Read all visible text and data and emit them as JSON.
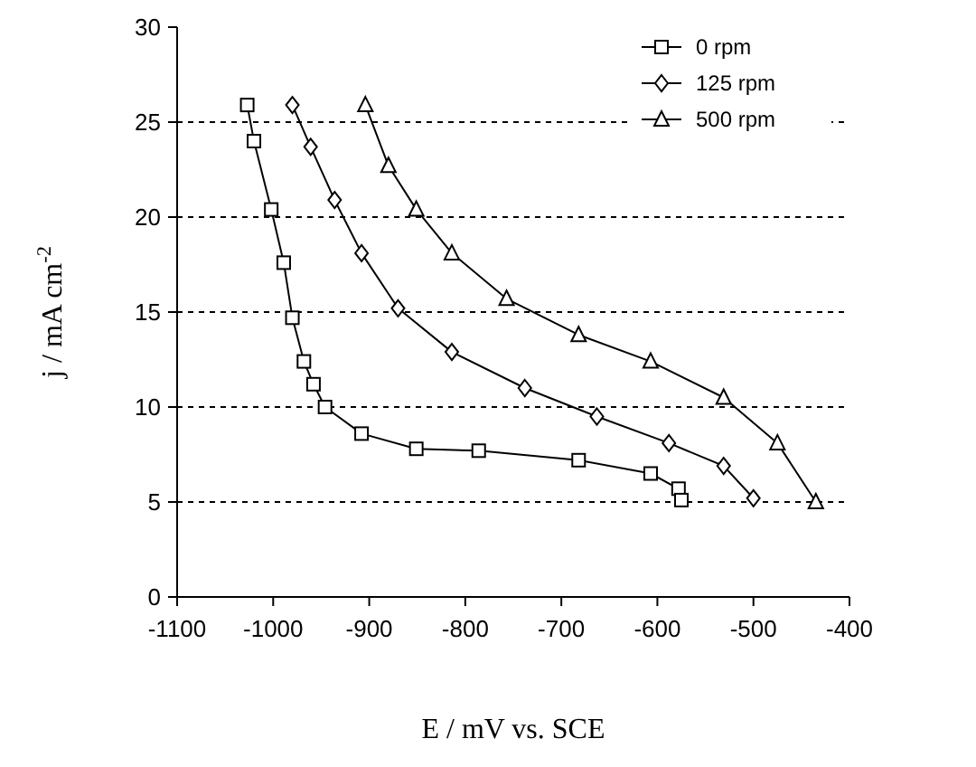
{
  "chart_data": {
    "type": "line",
    "xlabel": "E / mV vs. SCE",
    "ylabel": "j / mA cm$^{-2}$",
    "xlim": [
      -1100,
      -400
    ],
    "xticks": [
      -1100,
      -1000,
      -900,
      -800,
      -700,
      -600,
      -500,
      -400
    ],
    "ylim": [
      0,
      30
    ],
    "yticks": [
      0,
      5,
      10,
      15,
      20,
      25,
      30
    ],
    "grid": "y",
    "legend": "top right",
    "line_style": "solid",
    "series": [
      {
        "name": "0 rpm",
        "color": "#000000",
        "marker": "square",
        "x": [
          -1027,
          -1020,
          -1002,
          -989,
          -980,
          -968,
          -958,
          -946,
          -908,
          -851,
          -786,
          -682,
          -607,
          -578,
          -575
        ],
        "values": [
          25.9,
          24,
          20.4,
          17.6,
          14.7,
          12.4,
          11.2,
          10,
          8.6,
          7.8,
          7.7,
          7.2,
          6.5,
          5.7,
          5.1
        ]
      },
      {
        "name": "125 rpm",
        "color": "#000000",
        "marker": "diamond",
        "x": [
          -980,
          -961,
          -936,
          -908,
          -870,
          -814,
          -738,
          -663,
          -588,
          -531,
          -500
        ],
        "values": [
          25.9,
          23.7,
          20.9,
          18.1,
          15.2,
          12.9,
          11,
          9.5,
          8.1,
          6.9,
          5.2
        ]
      },
      {
        "name": "500 rpm",
        "color": "#000000",
        "marker": "triangle",
        "x": [
          -904,
          -880,
          -851,
          -814,
          -757,
          -682,
          -607,
          -531,
          -475,
          -435
        ],
        "values": [
          25.9,
          22.7,
          20.4,
          18.1,
          15.7,
          13.8,
          12.4,
          10.5,
          8.1,
          5.0
        ]
      }
    ]
  }
}
